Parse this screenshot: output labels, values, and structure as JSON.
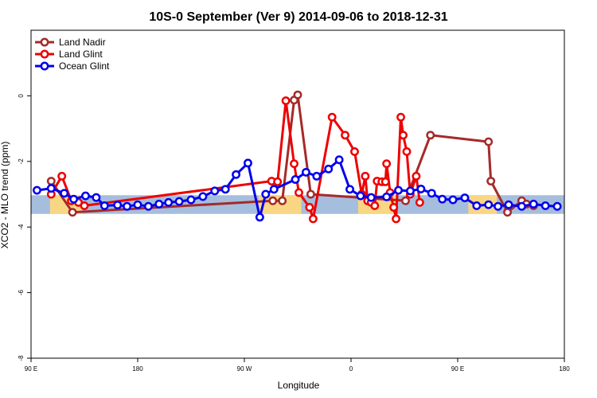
{
  "chart_data": {
    "type": "line",
    "title": "10S-0 September (Ver 9)   2014-09-06 to 2018-12-31",
    "xlabel": "Longitude",
    "ylabel": "XCO2 - MLO trend (ppm)",
    "xlim": [
      90,
      540
    ],
    "ylim": [
      -8,
      2
    ],
    "x_ticks": [
      {
        "value": 90,
        "label": "90 E"
      },
      {
        "value": 180,
        "label": "180"
      },
      {
        "value": 270,
        "label": "90 W"
      },
      {
        "value": 360,
        "label": "0"
      },
      {
        "value": 450,
        "label": "90 E"
      },
      {
        "value": 540,
        "label": "180"
      }
    ],
    "y_ticks": [
      {
        "value": -8,
        "label": "-8"
      },
      {
        "value": -6,
        "label": "-6"
      },
      {
        "value": -4,
        "label": "-4"
      },
      {
        "value": -2,
        "label": "-2"
      },
      {
        "value": 0,
        "label": "0"
      }
    ],
    "latitude_band": {
      "y_top": -3.03,
      "y_bottom": -3.6,
      "ocean_color": "#a5bedd",
      "land_color": "#f9d683"
    },
    "land_segments": [
      [
        106,
        133
      ],
      [
        282,
        318
      ],
      [
        366,
        398
      ],
      [
        459,
        483
      ]
    ],
    "legend": {
      "position": "top-left"
    },
    "series": [
      {
        "name": "Land Nadir",
        "color": "#a52a2a",
        "x": [
          107,
          125,
          294,
          302,
          312,
          315,
          326,
          406,
          427,
          476,
          478,
          492,
          504,
          508,
          514
        ],
        "y": [
          -2.6,
          -3.55,
          -3.2,
          -3.2,
          -0.13,
          0.03,
          -3.0,
          -3.2,
          -1.2,
          -1.4,
          -2.6,
          -3.55,
          -3.2,
          -3.3,
          -3.35
        ]
      },
      {
        "name": "Land Glint",
        "color": "#ee0000",
        "x": [
          107,
          116,
          124,
          130,
          135,
          293,
          298,
          305,
          312,
          316,
          325,
          328,
          344,
          355,
          363,
          369,
          372,
          374,
          377,
          380,
          382,
          386,
          389,
          390,
          393,
          396,
          398,
          402,
          404,
          407,
          410,
          415,
          418
        ],
        "y": [
          -3.0,
          -2.45,
          -3.2,
          -3.25,
          -3.35,
          -2.6,
          -2.62,
          -0.15,
          -2.07,
          -2.95,
          -3.4,
          -3.75,
          -0.65,
          -1.2,
          -1.7,
          -3.0,
          -2.45,
          -3.2,
          -3.25,
          -3.35,
          -2.6,
          -2.62,
          -2.62,
          -2.07,
          -2.95,
          -3.4,
          -3.75,
          -0.65,
          -1.2,
          -1.7,
          -3.0,
          -2.45,
          -3.25
        ]
      },
      {
        "name": "Ocean Glint",
        "color": "#0000ee",
        "x": [
          95,
          107,
          118,
          126,
          136,
          145,
          152,
          163,
          171,
          180,
          189,
          198,
          206,
          215,
          225,
          235,
          245,
          254,
          263,
          273,
          283,
          288,
          295,
          313,
          322,
          331,
          341,
          350,
          359,
          368,
          377,
          390,
          400,
          410,
          419,
          428,
          437,
          446,
          456,
          466,
          476,
          484,
          493,
          504,
          514,
          524,
          534
        ],
        "y": [
          -2.88,
          -2.82,
          -2.97,
          -3.15,
          -3.05,
          -3.1,
          -3.35,
          -3.33,
          -3.37,
          -3.32,
          -3.37,
          -3.3,
          -3.25,
          -3.22,
          -3.17,
          -3.07,
          -2.9,
          -2.85,
          -2.4,
          -2.05,
          -3.7,
          -3.0,
          -2.85,
          -2.55,
          -2.33,
          -2.45,
          -2.23,
          -1.95,
          -2.85,
          -3.05,
          -3.1,
          -3.08,
          -2.88,
          -2.9,
          -2.84,
          -2.97,
          -3.15,
          -3.17,
          -3.11,
          -3.35,
          -3.32,
          -3.37,
          -3.32,
          -3.37,
          -3.3,
          -3.35,
          -3.37
        ]
      }
    ]
  }
}
